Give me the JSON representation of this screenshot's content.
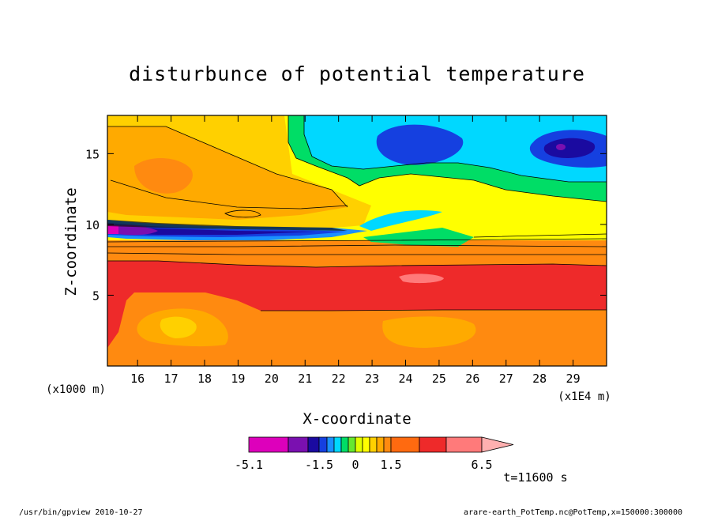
{
  "chart_data": {
    "type": "heatmap",
    "title": "disturbunce of potential temperature",
    "xlabel": "X-coordinate",
    "ylabel": "Z-coordinate",
    "x_unit": "(x1E4 m)",
    "y_unit": "(x1000 m)",
    "xlim": [
      15.1,
      30.0
    ],
    "ylim": [
      0.0,
      17.7
    ],
    "x_ticks": [
      16,
      17,
      18,
      19,
      20,
      21,
      22,
      23,
      24,
      25,
      26,
      27,
      28,
      29
    ],
    "y_ticks": [
      5,
      10,
      15
    ],
    "colorbar": {
      "labels": [
        "-5.1",
        "-1.5",
        "0",
        "1.5",
        "6.5"
      ],
      "label_values": [
        -5.1,
        -1.5,
        0,
        1.5,
        6.5
      ],
      "boundaries": [
        -5.1,
        -3.9,
        -2.7,
        -1.5,
        -1.2,
        -0.9,
        -0.6,
        -0.3,
        0,
        0.3,
        0.6,
        0.9,
        1.2,
        1.5,
        2.5,
        3.5,
        4.5,
        6.5
      ],
      "colors": [
        "#dd00bb",
        "#7a10b0",
        "#1a0aa0",
        "#1540e0",
        "#1a90ff",
        "#00d8ff",
        "#00dd66",
        "#66e830",
        "#e0ff00",
        "#ffff00",
        "#ffd000",
        "#ffaa00",
        "#ff8a10",
        "#ff6a10",
        "#ee2a2a",
        "#ff7a7a",
        "#ffb0b0"
      ],
      "extend": "max"
    },
    "regions": [
      {
        "level": 0.0,
        "desc": "upper-left yellow region"
      },
      {
        "level": 1.2,
        "desc": "orange upper-left"
      },
      {
        "level": -0.3,
        "desc": "green band upper right"
      },
      {
        "level": -0.6,
        "desc": "cyan upper right"
      },
      {
        "level": -1.5,
        "desc": "blue upper right cores"
      },
      {
        "level": -3.5,
        "desc": "blue-violet layer near z=10"
      },
      {
        "level": 3.0,
        "desc": "red layer z~4-8"
      },
      {
        "level": 5.0,
        "desc": "pink spot x~24.2 z~6.3"
      },
      {
        "level": 2.0,
        "desc": "orange lower layer"
      }
    ]
  },
  "annotation": "t=11600 s",
  "footer_left": "/usr/bin/gpview   2010-10-27",
  "footer_right": "arare-earth_PotTemp.nc@PotTemp,x=150000:300000"
}
